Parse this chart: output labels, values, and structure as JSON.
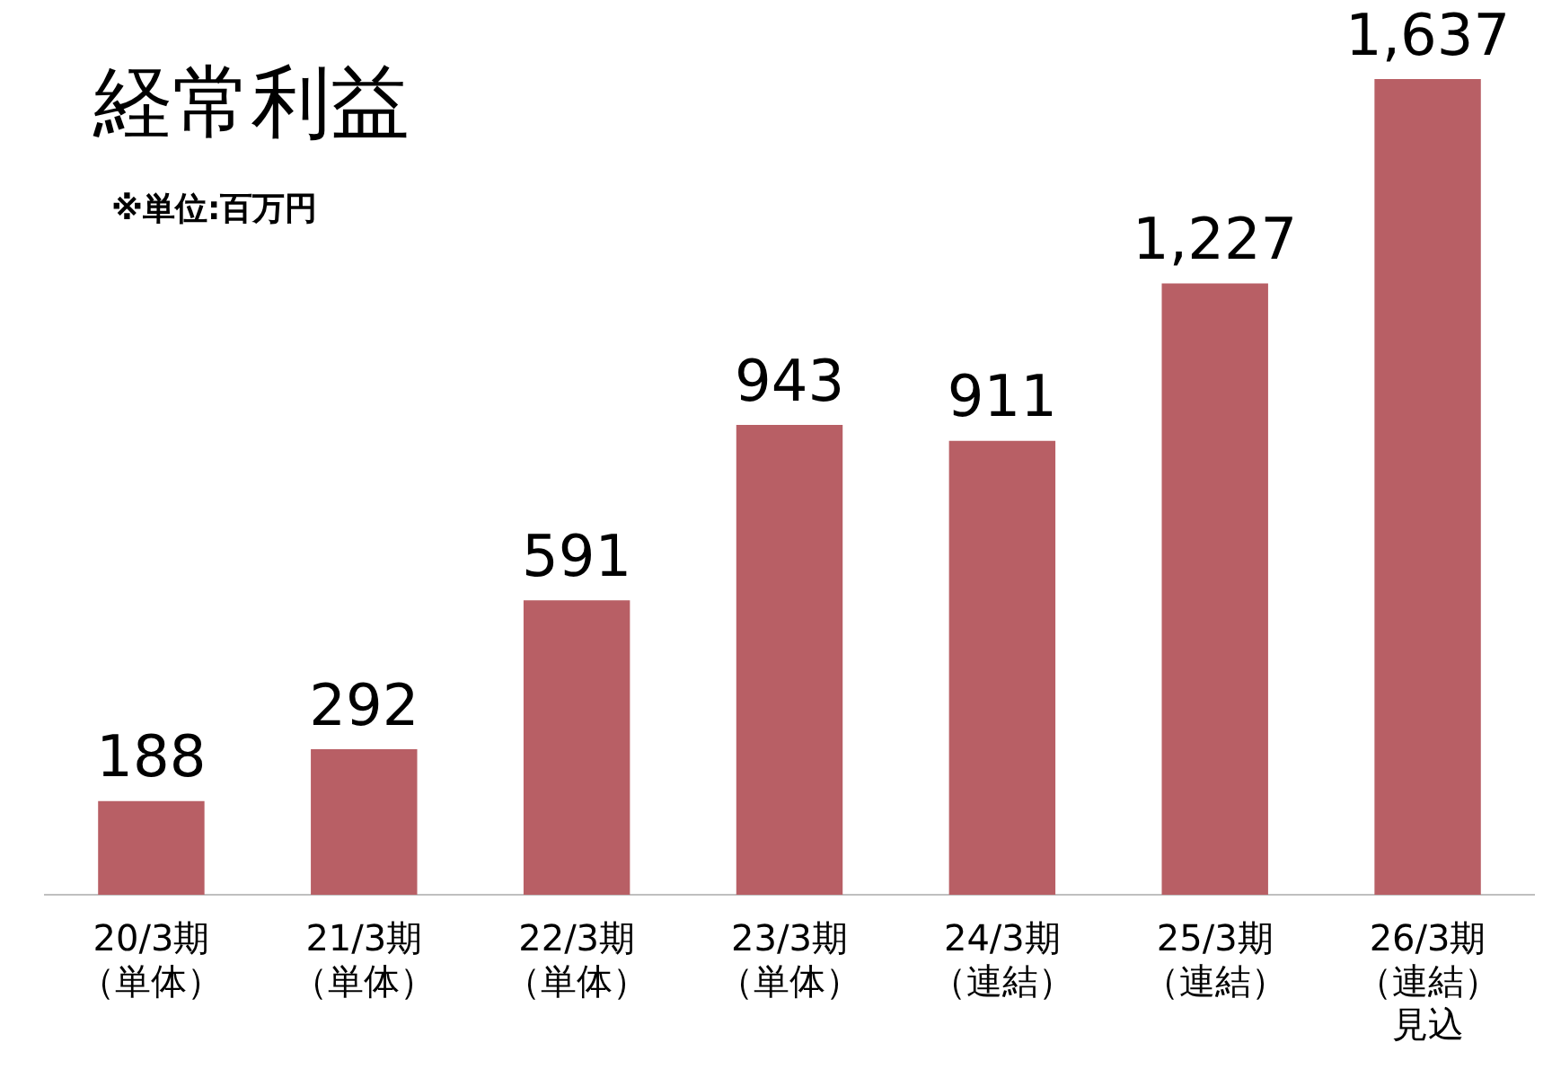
{
  "chart_data": {
    "type": "bar",
    "title": "経常利益",
    "subtitle": "※単位:百万円",
    "categories": [
      "20/3期（単体）",
      "21/3期（単体）",
      "22/3期（単体）",
      "23/3期（単体）",
      "24/3期（連結）",
      "25/3期（連結）",
      "26/3期（連結）見込"
    ],
    "values": [
      188,
      292,
      591,
      943,
      911,
      1227,
      1637
    ],
    "value_labels": [
      "188",
      "292",
      "591",
      "943",
      "911",
      "1,227",
      "1,637"
    ],
    "color": "#b85f65",
    "grid": false,
    "legend": false
  }
}
